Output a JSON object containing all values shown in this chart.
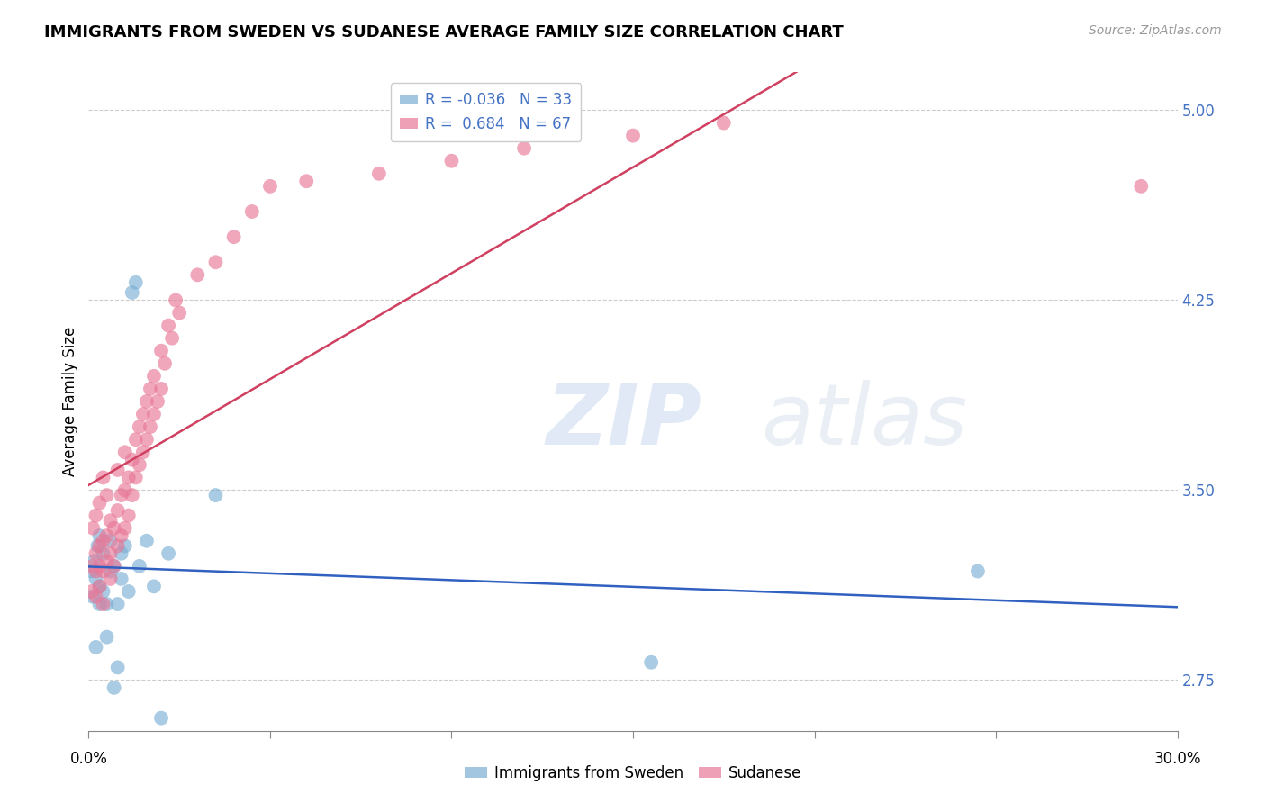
{
  "title": "IMMIGRANTS FROM SWEDEN VS SUDANESE AVERAGE FAMILY SIZE CORRELATION CHART",
  "source": "Source: ZipAtlas.com",
  "ylabel": "Average Family Size",
  "yticks": [
    2.75,
    3.5,
    4.25,
    5.0
  ],
  "xlim": [
    0.0,
    0.3
  ],
  "ylim": [
    2.55,
    5.15
  ],
  "sweden_color": "#7bafd4",
  "sudanese_color": "#e87898",
  "sweden_line_color": "#3060c0",
  "sudanese_line_color": "#d04060",
  "sweden_x": [
    0.0008,
    0.001,
    0.0015,
    0.002,
    0.002,
    0.0025,
    0.003,
    0.003,
    0.003,
    0.004,
    0.004,
    0.005,
    0.005,
    0.006,
    0.006,
    0.007,
    0.007,
    0.008,
    0.008,
    0.009,
    0.009,
    0.01,
    0.011,
    0.012,
    0.013,
    0.014,
    0.016,
    0.018,
    0.02,
    0.022,
    0.035,
    0.155,
    0.245
  ],
  "sweden_y": [
    3.18,
    3.08,
    3.22,
    2.88,
    3.15,
    3.28,
    3.05,
    3.12,
    3.32,
    3.1,
    3.25,
    2.92,
    3.05,
    3.18,
    3.3,
    2.72,
    3.2,
    2.8,
    3.05,
    3.15,
    3.25,
    3.28,
    3.1,
    4.28,
    4.32,
    3.2,
    3.3,
    3.12,
    2.6,
    3.25,
    3.48,
    2.82,
    3.18
  ],
  "sudanese_x": [
    0.0008,
    0.001,
    0.0012,
    0.002,
    0.002,
    0.002,
    0.002,
    0.003,
    0.003,
    0.003,
    0.003,
    0.004,
    0.004,
    0.004,
    0.004,
    0.005,
    0.005,
    0.005,
    0.006,
    0.006,
    0.006,
    0.007,
    0.007,
    0.008,
    0.008,
    0.008,
    0.009,
    0.009,
    0.01,
    0.01,
    0.01,
    0.011,
    0.011,
    0.012,
    0.012,
    0.013,
    0.013,
    0.014,
    0.014,
    0.015,
    0.015,
    0.016,
    0.016,
    0.017,
    0.017,
    0.018,
    0.018,
    0.019,
    0.02,
    0.02,
    0.021,
    0.022,
    0.023,
    0.024,
    0.025,
    0.03,
    0.035,
    0.04,
    0.045,
    0.05,
    0.06,
    0.08,
    0.1,
    0.12,
    0.15,
    0.175,
    0.29
  ],
  "sudanese_y": [
    3.1,
    3.2,
    3.35,
    3.08,
    3.18,
    3.25,
    3.4,
    3.12,
    3.2,
    3.28,
    3.45,
    3.05,
    3.18,
    3.3,
    3.55,
    3.22,
    3.32,
    3.48,
    3.15,
    3.25,
    3.38,
    3.2,
    3.35,
    3.28,
    3.42,
    3.58,
    3.32,
    3.48,
    3.35,
    3.5,
    3.65,
    3.4,
    3.55,
    3.48,
    3.62,
    3.55,
    3.7,
    3.6,
    3.75,
    3.65,
    3.8,
    3.7,
    3.85,
    3.75,
    3.9,
    3.8,
    3.95,
    3.85,
    3.9,
    4.05,
    4.0,
    4.15,
    4.1,
    4.25,
    4.2,
    4.35,
    4.4,
    4.5,
    4.6,
    4.7,
    4.72,
    4.75,
    4.8,
    4.85,
    4.9,
    4.95,
    4.7
  ],
  "legend_r_sweden": "R = -0.036",
  "legend_n_sweden": "N = 33",
  "legend_r_sudanese": "R =  0.684",
  "legend_n_sudanese": "N = 67",
  "legend_label_sweden": "Immigrants from Sweden",
  "legend_label_sudanese": "Sudanese"
}
